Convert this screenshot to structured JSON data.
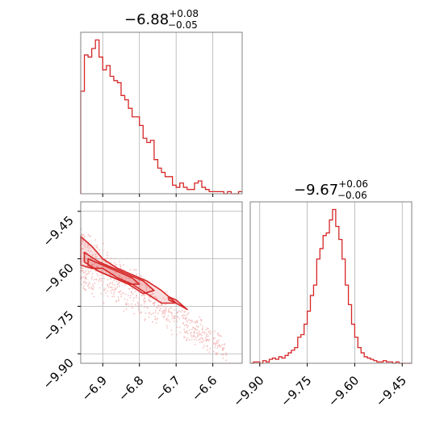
{
  "colors": {
    "accent": "#d62728",
    "scatter": "#f4b3b3",
    "grid": "#b0b0b0",
    "frame": "#808080"
  },
  "chart_data": [
    {
      "type": "histogram",
      "panel": "top-left",
      "title": {
        "main": "−6.88",
        "sup": "+0.08",
        "sub": "−0.05"
      },
      "xlim": [
        -6.96,
        -6.52
      ],
      "xticks": [
        -6.9,
        -6.8,
        -6.7,
        -6.6
      ],
      "grid": true,
      "bin_start": -6.96,
      "bin_width": 0.01,
      "counts": [
        48,
        65,
        64,
        68,
        72,
        64,
        58,
        60,
        55,
        53,
        52,
        46,
        44,
        40,
        36,
        36,
        32,
        26,
        24,
        25,
        16,
        12,
        10,
        8,
        8,
        4,
        3,
        5,
        3,
        2,
        2,
        5,
        6,
        3,
        2,
        1,
        1,
        1,
        1,
        0,
        1,
        0,
        0,
        1
      ]
    },
    {
      "type": "scatter_contour",
      "panel": "bottom-left",
      "xlim": [
        -6.96,
        -6.52
      ],
      "ylim": [
        -9.93,
        -9.42
      ],
      "xticks": [
        -6.9,
        -6.8,
        -6.7,
        -6.6
      ],
      "xticklabels": [
        "−6.9",
        "−6.8",
        "−6.7",
        "−6.6"
      ],
      "yticks": [
        -9.45,
        -9.6,
        -9.75,
        -9.9
      ],
      "yticklabels": [
        "−9.45",
        "−9.60",
        "−9.75",
        "−9.90"
      ],
      "grid": true,
      "contours": [
        {
          "x": [
            -6.96,
            -6.93,
            -6.9,
            -6.86,
            -6.82,
            -6.78,
            -6.74,
            -6.7,
            -6.74,
            -6.78,
            -6.82,
            -6.86,
            -6.9,
            -6.93,
            -6.96
          ],
          "y": [
            -9.53,
            -9.56,
            -9.6,
            -9.63,
            -9.65,
            -9.67,
            -9.7,
            -9.74,
            -9.74,
            -9.71,
            -9.68,
            -9.66,
            -9.63,
            -9.63,
            -9.62
          ]
        },
        {
          "x": [
            -6.95,
            -6.91,
            -6.87,
            -6.83,
            -6.79,
            -6.76,
            -6.79,
            -6.83,
            -6.87,
            -6.91,
            -6.95
          ],
          "y": [
            -9.58,
            -9.61,
            -9.63,
            -9.65,
            -9.67,
            -9.7,
            -9.71,
            -9.68,
            -9.66,
            -9.64,
            -9.61
          ]
        },
        {
          "x": [
            -6.94,
            -6.9,
            -6.86,
            -6.82,
            -6.8,
            -6.83,
            -6.87,
            -6.91,
            -6.94
          ],
          "y": [
            -9.6,
            -9.62,
            -9.64,
            -9.66,
            -9.68,
            -9.68,
            -9.66,
            -9.64,
            -9.62
          ]
        },
        {
          "x": [
            -6.72,
            -6.7,
            -6.67,
            -6.7,
            -6.72
          ],
          "y": [
            -9.72,
            -9.73,
            -9.76,
            -9.74,
            -9.73
          ]
        }
      ]
    },
    {
      "type": "histogram",
      "panel": "bottom-right",
      "title": {
        "main": "−9.67",
        "sup": "+0.06",
        "sub": "−0.06"
      },
      "xlim": [
        -9.93,
        -9.42
      ],
      "xticks": [
        -9.9,
        -9.75,
        -9.6,
        -9.45
      ],
      "xticklabels": [
        "−9.90",
        "−9.75",
        "−9.60",
        "−9.45"
      ],
      "grid": true,
      "bin_start": -9.93,
      "bin_width": 0.01,
      "counts": [
        0,
        1,
        1,
        0,
        2,
        1,
        3,
        4,
        3,
        5,
        4,
        6,
        8,
        10,
        12,
        20,
        22,
        30,
        40,
        52,
        60,
        80,
        88,
        98,
        100,
        110,
        118,
        105,
        95,
        80,
        60,
        45,
        30,
        20,
        12,
        8,
        5,
        4,
        3,
        2,
        1,
        1,
        2,
        1,
        1,
        0,
        1,
        0,
        0,
        0,
        0
      ]
    }
  ]
}
